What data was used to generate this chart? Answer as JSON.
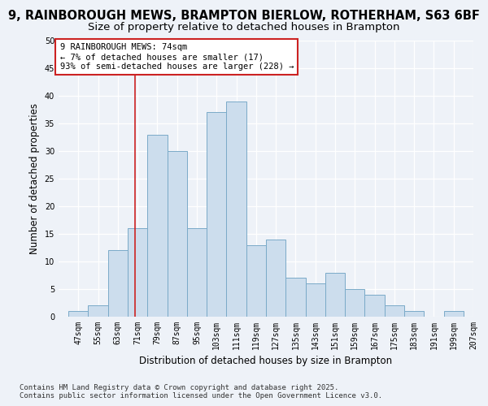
{
  "title_line1": "9, RAINBOROUGH MEWS, BRAMPTON BIERLOW, ROTHERHAM, S63 6BF",
  "title_line2": "Size of property relative to detached houses in Brampton",
  "xlabel": "Distribution of detached houses by size in Brampton",
  "ylabel": "Number of detached properties",
  "footnote": "Contains HM Land Registry data © Crown copyright and database right 2025.\nContains public sector information licensed under the Open Government Licence v3.0.",
  "bins": [
    47,
    55,
    63,
    71,
    79,
    87,
    95,
    103,
    111,
    119,
    127,
    135,
    143,
    151,
    159,
    167,
    175,
    183,
    191,
    199,
    207
  ],
  "values": [
    1,
    2,
    12,
    16,
    33,
    30,
    16,
    37,
    39,
    13,
    14,
    7,
    6,
    8,
    5,
    4,
    2,
    1,
    0,
    1
  ],
  "bar_color": "#ccdded",
  "bar_edge_color": "#7aaac8",
  "vline_x": 74,
  "vline_color": "#cc2222",
  "annotation_text": "9 RAINBOROUGH MEWS: 74sqm\n← 7% of detached houses are smaller (17)\n93% of semi-detached houses are larger (228) →",
  "annotation_box_color": "#ffffff",
  "annotation_box_edge": "#cc2222",
  "ylim": [
    0,
    50
  ],
  "yticks": [
    0,
    5,
    10,
    15,
    20,
    25,
    30,
    35,
    40,
    45,
    50
  ],
  "bg_color": "#eef2f8",
  "plot_bg_color": "#eef2f8",
  "grid_color": "#ffffff",
  "title1_fontsize": 10.5,
  "title2_fontsize": 9.5,
  "axis_label_fontsize": 8.5,
  "tick_fontsize": 7,
  "annot_fontsize": 7.5,
  "footnote_fontsize": 6.5
}
